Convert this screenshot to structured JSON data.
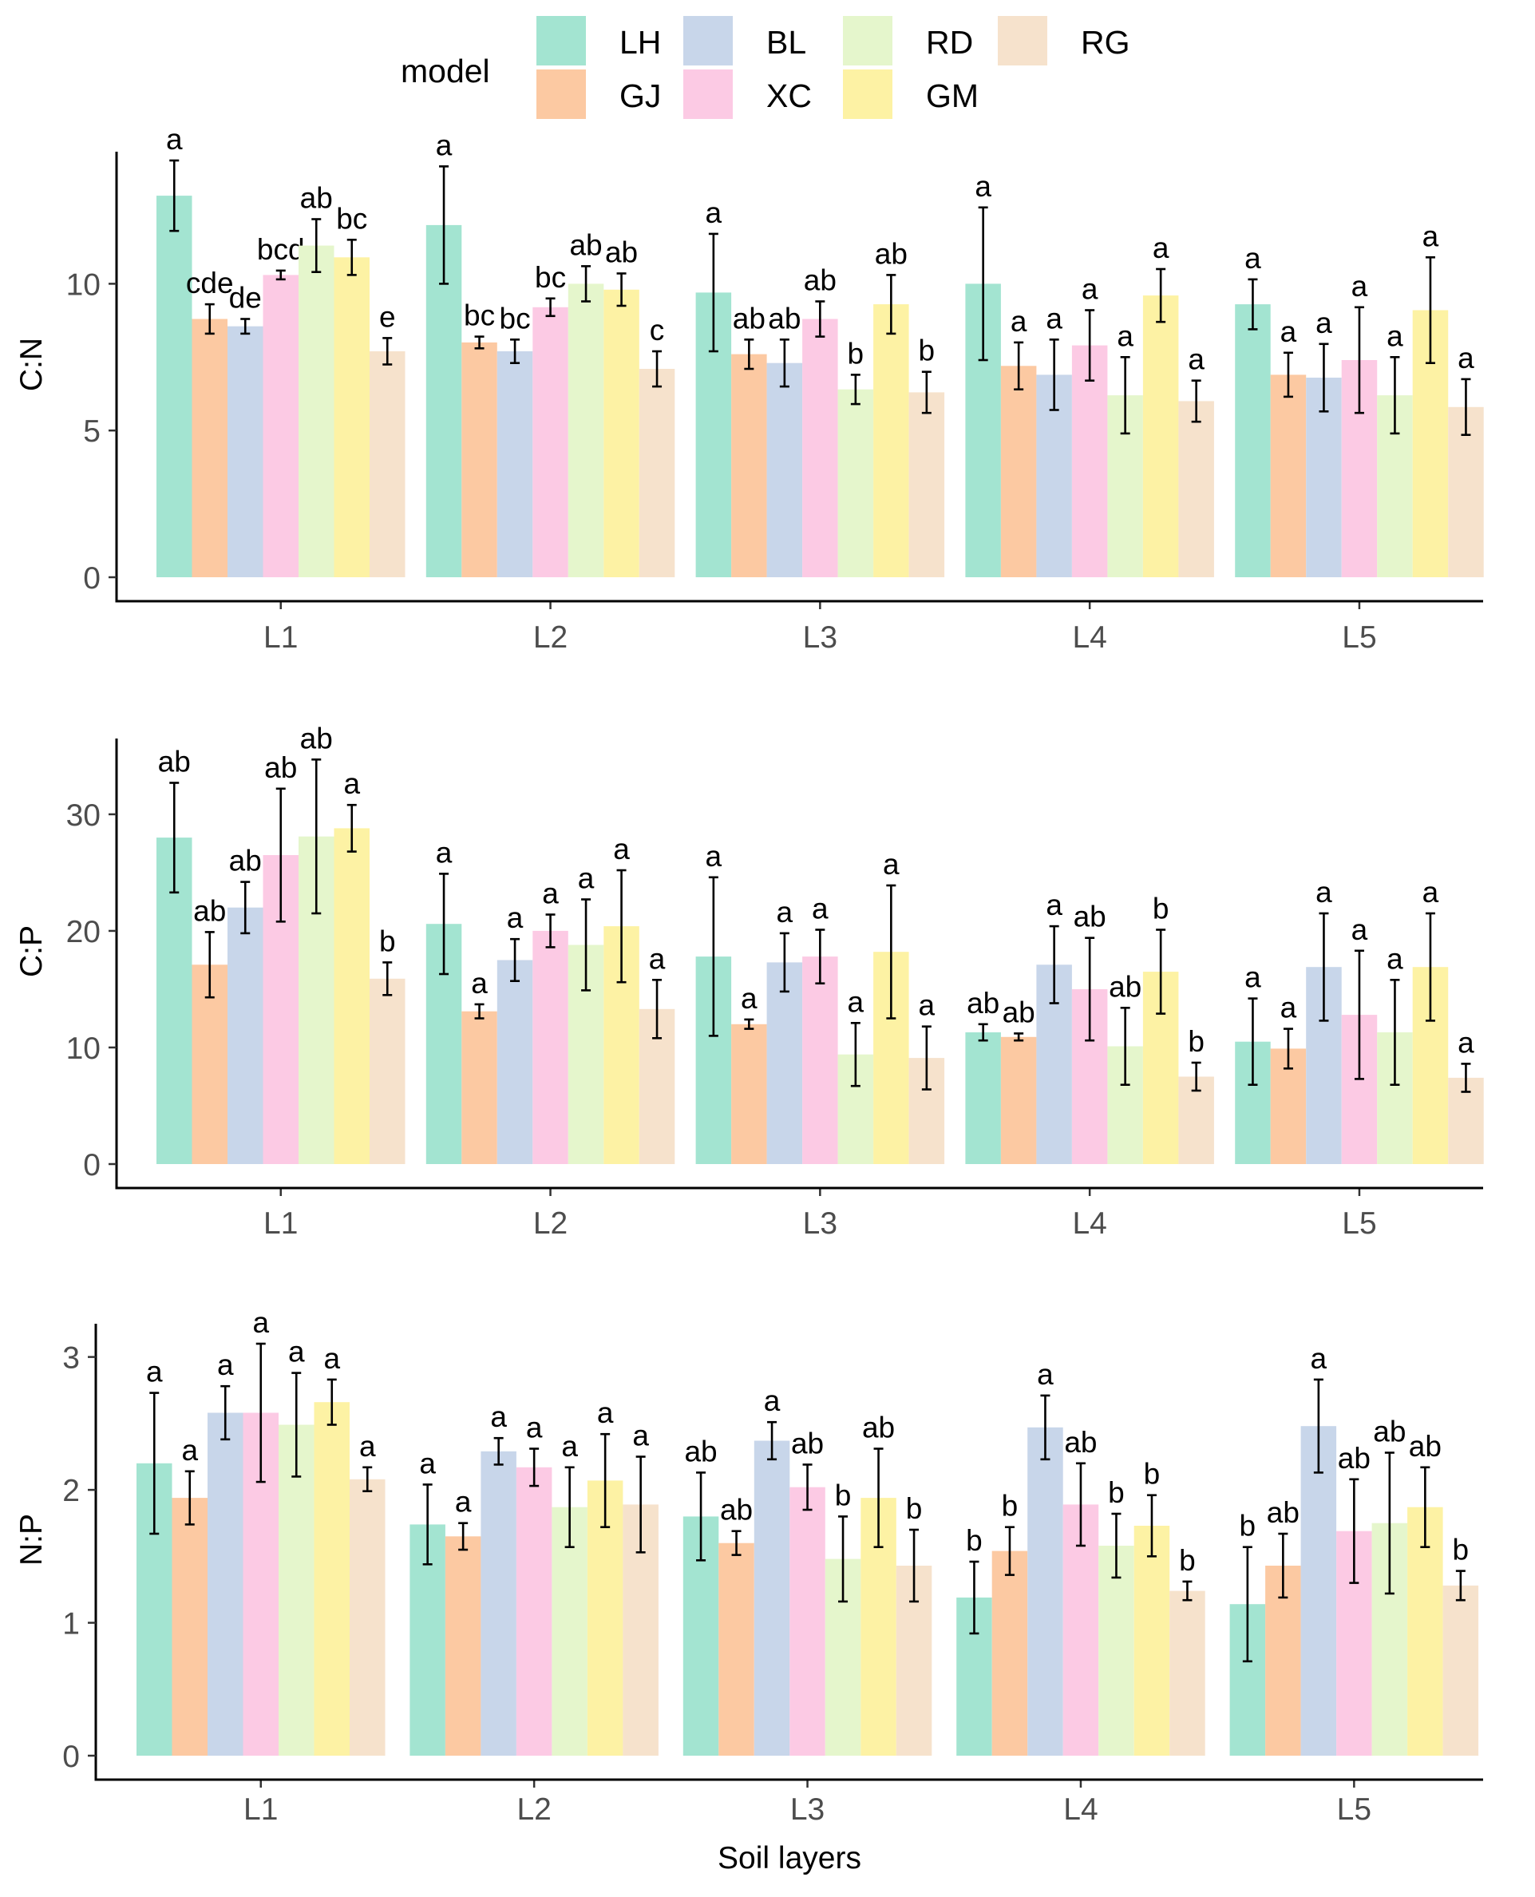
{
  "legend": {
    "title": "model",
    "entries": [
      {
        "name": "LH",
        "color": "#a3e4d1"
      },
      {
        "name": "GJ",
        "color": "#fcc9a2"
      },
      {
        "name": "BL",
        "color": "#c8d6ea"
      },
      {
        "name": "XC",
        "color": "#fccae4"
      },
      {
        "name": "RD",
        "color": "#e5f6cc"
      },
      {
        "name": "GM",
        "color": "#fdf2a4"
      },
      {
        "name": "RG",
        "color": "#f6e2cc"
      }
    ]
  },
  "chart_data": [
    {
      "type": "bar",
      "ylabel": "C:N",
      "xlabel": "",
      "ylim": [
        0,
        14.5
      ],
      "yticks": [
        0,
        5,
        10
      ],
      "categories": [
        "L1",
        "L2",
        "L3",
        "L4",
        "L5"
      ],
      "series": [
        {
          "name": "LH",
          "values": [
            13.0,
            12.0,
            9.7,
            10.0,
            9.3
          ],
          "errors": [
            1.2,
            2.0,
            2.0,
            2.6,
            0.85
          ],
          "labels": [
            "a",
            "a",
            "a",
            "a",
            "a"
          ]
        },
        {
          "name": "GJ",
          "values": [
            8.8,
            8.0,
            7.6,
            7.2,
            6.9
          ],
          "errors": [
            0.5,
            0.2,
            0.5,
            0.8,
            0.75
          ],
          "labels": [
            "cde",
            "bc",
            "ab",
            "a",
            "a"
          ]
        },
        {
          "name": "BL",
          "values": [
            8.55,
            7.7,
            7.3,
            6.9,
            6.8
          ],
          "errors": [
            0.25,
            0.4,
            0.8,
            1.2,
            1.15
          ],
          "labels": [
            "de",
            "bc",
            "ab",
            "a",
            "a"
          ]
        },
        {
          "name": "XC",
          "values": [
            10.3,
            9.2,
            8.8,
            7.9,
            7.4
          ],
          "errors": [
            0.15,
            0.3,
            0.6,
            1.2,
            1.8
          ],
          "labels": [
            "bcd",
            "bc",
            "ab",
            "a",
            "a"
          ]
        },
        {
          "name": "RD",
          "values": [
            11.3,
            10.0,
            6.4,
            6.2,
            6.2
          ],
          "errors": [
            0.9,
            0.6,
            0.5,
            1.3,
            1.3
          ],
          "labels": [
            "ab",
            "ab",
            "b",
            "a",
            "a"
          ]
        },
        {
          "name": "GM",
          "values": [
            10.9,
            9.8,
            9.3,
            9.6,
            9.1
          ],
          "errors": [
            0.6,
            0.55,
            1.0,
            0.9,
            1.8
          ],
          "labels": [
            "bc",
            "ab",
            "ab",
            "a",
            "a"
          ]
        },
        {
          "name": "RG",
          "values": [
            7.7,
            7.1,
            6.3,
            6.0,
            5.8
          ],
          "errors": [
            0.45,
            0.6,
            0.7,
            0.7,
            0.95
          ],
          "labels": [
            "e",
            "c",
            "b",
            "a",
            "a"
          ]
        }
      ]
    },
    {
      "type": "bar",
      "ylabel": "C:P",
      "xlabel": "",
      "ylim": [
        0,
        36.5
      ],
      "yticks": [
        0,
        10,
        20,
        30
      ],
      "categories": [
        "L1",
        "L2",
        "L3",
        "L4",
        "L5"
      ],
      "series": [
        {
          "name": "LH",
          "values": [
            28.0,
            20.6,
            17.8,
            11.3,
            10.5
          ],
          "errors": [
            4.7,
            4.3,
            6.8,
            0.7,
            3.7
          ],
          "labels": [
            "ab",
            "a",
            "a",
            "ab",
            "a"
          ]
        },
        {
          "name": "GJ",
          "values": [
            17.1,
            13.1,
            12.0,
            10.9,
            9.9
          ],
          "errors": [
            2.8,
            0.6,
            0.4,
            0.3,
            1.7
          ],
          "labels": [
            "ab",
            "a",
            "a",
            "ab",
            "a"
          ]
        },
        {
          "name": "BL",
          "values": [
            22.0,
            17.5,
            17.3,
            17.1,
            16.9
          ],
          "errors": [
            2.2,
            1.8,
            2.5,
            3.3,
            4.6
          ],
          "labels": [
            "ab",
            "a",
            "a",
            "a",
            "a"
          ]
        },
        {
          "name": "XC",
          "values": [
            26.5,
            20.0,
            17.8,
            15.0,
            12.8
          ],
          "errors": [
            5.7,
            1.4,
            2.3,
            4.4,
            5.5
          ],
          "labels": [
            "ab",
            "a",
            "a",
            "ab",
            "a"
          ]
        },
        {
          "name": "RD",
          "values": [
            28.1,
            18.8,
            9.4,
            10.1,
            11.3
          ],
          "errors": [
            6.6,
            3.9,
            2.7,
            3.3,
            4.5
          ],
          "labels": [
            "ab",
            "a",
            "a",
            "ab",
            "a"
          ]
        },
        {
          "name": "GM",
          "values": [
            28.8,
            20.4,
            18.2,
            16.5,
            16.9
          ],
          "errors": [
            2.0,
            4.8,
            5.7,
            3.6,
            4.6
          ],
          "labels": [
            "a",
            "a",
            "a",
            "b",
            "a"
          ]
        },
        {
          "name": "RG",
          "values": [
            15.9,
            13.3,
            9.1,
            7.5,
            7.4
          ],
          "errors": [
            1.4,
            2.5,
            2.7,
            1.2,
            1.2
          ],
          "labels": [
            "b",
            "a",
            "a",
            "b",
            "a"
          ]
        }
      ]
    },
    {
      "type": "bar",
      "ylabel": "N:P",
      "xlabel": "Soil layers",
      "ylim": [
        0,
        3.25
      ],
      "yticks": [
        0,
        1,
        2,
        3
      ],
      "categories": [
        "L1",
        "L2",
        "L3",
        "L4",
        "L5"
      ],
      "series": [
        {
          "name": "LH",
          "values": [
            2.2,
            1.74,
            1.8,
            1.19,
            1.14
          ],
          "errors": [
            0.53,
            0.3,
            0.33,
            0.27,
            0.43
          ],
          "labels": [
            "a",
            "a",
            "ab",
            "b",
            "b"
          ]
        },
        {
          "name": "GJ",
          "values": [
            1.94,
            1.65,
            1.6,
            1.54,
            1.43
          ],
          "errors": [
            0.2,
            0.1,
            0.09,
            0.18,
            0.24
          ],
          "labels": [
            "a",
            "a",
            "ab",
            "b",
            "ab"
          ]
        },
        {
          "name": "BL",
          "values": [
            2.58,
            2.29,
            2.37,
            2.47,
            2.48
          ],
          "errors": [
            0.2,
            0.1,
            0.14,
            0.24,
            0.35
          ],
          "labels": [
            "a",
            "a",
            "a",
            "a",
            "a"
          ]
        },
        {
          "name": "XC",
          "values": [
            2.58,
            2.17,
            2.02,
            1.89,
            1.69
          ],
          "errors": [
            0.52,
            0.14,
            0.17,
            0.31,
            0.39
          ],
          "labels": [
            "a",
            "a",
            "ab",
            "ab",
            "ab"
          ]
        },
        {
          "name": "RD",
          "values": [
            2.49,
            1.87,
            1.48,
            1.58,
            1.75
          ],
          "errors": [
            0.39,
            0.3,
            0.32,
            0.24,
            0.53
          ],
          "labels": [
            "a",
            "a",
            "b",
            "b",
            "ab"
          ]
        },
        {
          "name": "GM",
          "values": [
            2.66,
            2.07,
            1.94,
            1.73,
            1.87
          ],
          "errors": [
            0.17,
            0.35,
            0.37,
            0.23,
            0.3
          ],
          "labels": [
            "a",
            "a",
            "ab",
            "b",
            "ab"
          ]
        },
        {
          "name": "RG",
          "values": [
            2.08,
            1.89,
            1.43,
            1.24,
            1.28
          ],
          "errors": [
            0.09,
            0.36,
            0.27,
            0.07,
            0.11
          ],
          "labels": [
            "a",
            "a",
            "b",
            "b",
            "b"
          ]
        }
      ]
    }
  ]
}
